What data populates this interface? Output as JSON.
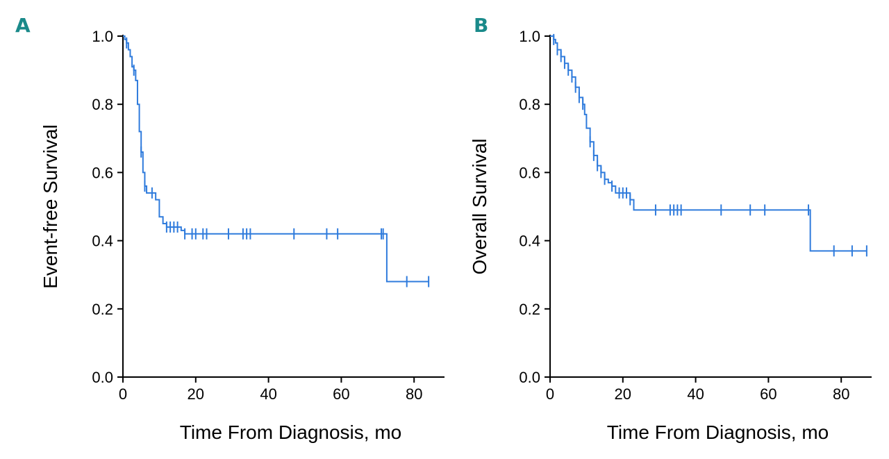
{
  "colors": {
    "series": "#2f7bdc",
    "panel_letter": "#1a8a8a",
    "axis": "#000000"
  },
  "chart_data": [
    {
      "type": "line",
      "panel_label": "A",
      "title": "",
      "xlabel": "Time From Diagnosis, mo",
      "ylabel": "Event-free Survival",
      "xlim": [
        0,
        90
      ],
      "ylim": [
        0,
        1
      ],
      "xticks": [
        0,
        20,
        40,
        60,
        80
      ],
      "yticks": [
        0.0,
        0.2,
        0.4,
        0.6,
        0.8,
        1.0
      ],
      "xtick_labels": [
        "0",
        "20",
        "40",
        "60",
        "80"
      ],
      "ytick_labels": [
        "0.0",
        "0.2",
        "0.4",
        "0.6",
        "0.8",
        "1.0"
      ],
      "grid": false,
      "legend": "none",
      "series": [
        {
          "name": "Event-free survival",
          "step": [
            [
              0,
              1.0
            ],
            [
              0.5,
              0.99
            ],
            [
              1,
              0.98
            ],
            [
              1.5,
              0.96
            ],
            [
              2,
              0.94
            ],
            [
              2.5,
              0.91
            ],
            [
              3,
              0.9
            ],
            [
              3.5,
              0.87
            ],
            [
              4,
              0.8
            ],
            [
              4.5,
              0.72
            ],
            [
              5,
              0.66
            ],
            [
              5.5,
              0.6
            ],
            [
              6,
              0.56
            ],
            [
              6.5,
              0.54
            ],
            [
              9,
              0.52
            ],
            [
              10,
              0.47
            ],
            [
              11,
              0.45
            ],
            [
              12,
              0.44
            ],
            [
              16,
              0.43
            ],
            [
              17,
              0.42
            ],
            [
              72.5,
              0.42
            ],
            [
              72.5,
              0.28
            ],
            [
              84,
              0.28
            ]
          ],
          "censored_x": [
            1,
            3,
            5,
            6,
            8,
            12,
            13,
            14,
            15,
            17,
            19,
            20,
            22,
            23,
            29,
            33,
            34,
            35,
            47,
            56,
            59,
            71,
            71.5,
            78,
            84
          ]
        }
      ]
    },
    {
      "type": "line",
      "panel_label": "B",
      "title": "",
      "xlabel": "Time From Diagnosis, mo",
      "ylabel": "Overall Survival",
      "xlim": [
        0,
        90
      ],
      "ylim": [
        0,
        1
      ],
      "xticks": [
        0,
        20,
        40,
        60,
        80
      ],
      "yticks": [
        0.0,
        0.2,
        0.4,
        0.6,
        0.8,
        1.0
      ],
      "xtick_labels": [
        "0",
        "20",
        "40",
        "60",
        "80"
      ],
      "ytick_labels": [
        "0.0",
        "0.2",
        "0.4",
        "0.6",
        "0.8",
        "1.0"
      ],
      "grid": false,
      "legend": "none",
      "series": [
        {
          "name": "Overall survival",
          "step": [
            [
              0,
              1.0
            ],
            [
              1,
              0.99
            ],
            [
              1.5,
              0.98
            ],
            [
              2,
              0.96
            ],
            [
              3,
              0.94
            ],
            [
              4,
              0.92
            ],
            [
              5,
              0.9
            ],
            [
              6,
              0.88
            ],
            [
              7,
              0.85
            ],
            [
              8,
              0.82
            ],
            [
              9,
              0.8
            ],
            [
              9.5,
              0.77
            ],
            [
              10,
              0.73
            ],
            [
              11,
              0.69
            ],
            [
              12,
              0.65
            ],
            [
              13,
              0.62
            ],
            [
              14,
              0.6
            ],
            [
              15,
              0.58
            ],
            [
              16,
              0.57
            ],
            [
              17,
              0.56
            ],
            [
              18,
              0.54
            ],
            [
              22,
              0.52
            ],
            [
              23,
              0.49
            ],
            [
              71.5,
              0.49
            ],
            [
              71.5,
              0.37
            ],
            [
              87,
              0.37
            ]
          ],
          "censored_x": [
            1,
            2,
            3,
            4,
            5,
            6,
            7,
            8,
            9,
            11,
            12,
            13,
            14,
            15,
            17,
            19,
            20,
            21,
            22,
            29,
            33,
            34,
            35,
            36,
            47,
            55,
            59,
            71,
            78,
            83,
            87
          ]
        }
      ]
    }
  ]
}
